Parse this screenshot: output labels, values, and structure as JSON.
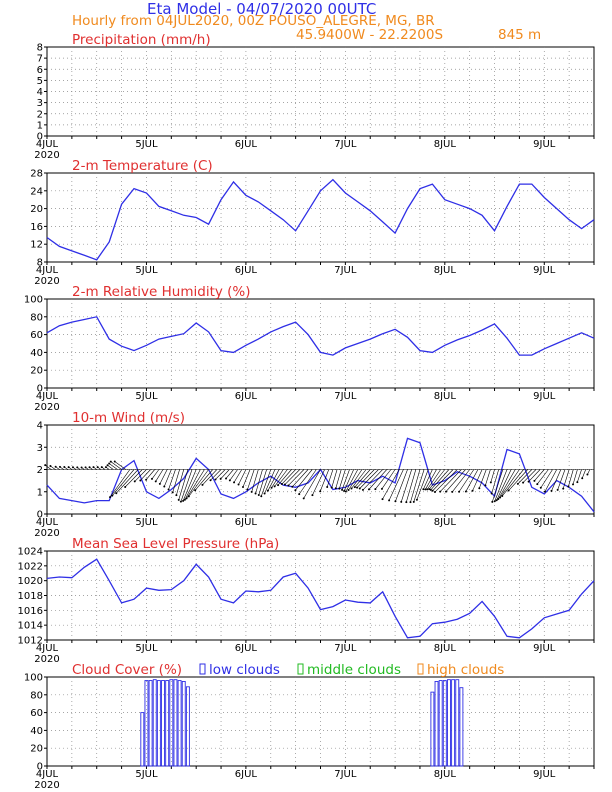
{
  "header": {
    "title": "Eta Model - 04/07/2020 00UTC",
    "subtitle": "Hourly from 04JUL2020, 00Z  POUSO_ALEGRE, MG, BR",
    "coordinates": "45.9400W - 22.2200S",
    "altitude": "845  m"
  },
  "x_axis": {
    "ticks": [
      "4JUL",
      "5JUL",
      "6JUL",
      "7JUL",
      "8JUL",
      "9JUL"
    ],
    "tick_hours": [
      0,
      24,
      48,
      72,
      96,
      120
    ],
    "year_label": "2020",
    "range_hours": [
      0,
      132
    ]
  },
  "colors": {
    "line": "#2f2fe6",
    "panel_title": "#e03030",
    "header": "#2f2fe6",
    "subheader": "#f08a1e",
    "low_clouds": "#2f2fe6",
    "middle_clouds": "#22bb22",
    "high_clouds": "#f08a1e"
  },
  "chart_data": [
    {
      "id": "precip",
      "type": "bar",
      "title": "Precipitation (mm/h)",
      "ylim": [
        0,
        8
      ],
      "yticks": [
        0,
        1,
        2,
        3,
        4,
        5,
        6,
        7,
        8
      ],
      "x": [],
      "values": []
    },
    {
      "id": "temp",
      "type": "line",
      "title": "2-m Temperature (C)",
      "ylim": [
        8,
        28
      ],
      "yticks": [
        8,
        12,
        16,
        20,
        24,
        28
      ],
      "x": [
        0,
        3,
        6,
        9,
        12,
        15,
        18,
        21,
        24,
        27,
        30,
        33,
        36,
        39,
        42,
        45,
        48,
        51,
        54,
        57,
        60,
        63,
        66,
        69,
        72,
        75,
        78,
        81,
        84,
        87,
        90,
        93,
        96,
        99,
        102,
        105,
        108,
        111,
        114,
        117,
        120,
        123,
        126,
        129,
        132
      ],
      "values": [
        13.5,
        11.5,
        10.5,
        9.5,
        8.5,
        12.5,
        21,
        24.5,
        23.5,
        20.5,
        19.5,
        18.5,
        18,
        16.5,
        22,
        26,
        23,
        21.5,
        19.5,
        17.5,
        15,
        19.5,
        24,
        26.5,
        23.5,
        21.5,
        19.5,
        17,
        14.5,
        20,
        24.5,
        25.5,
        22,
        21,
        20,
        18.5,
        15,
        20.5,
        25.5,
        25.5,
        22.5,
        20,
        17.5,
        15.5,
        17.5
      ]
    },
    {
      "id": "rh",
      "type": "line",
      "title": "2-m Relative Humidity (%)",
      "ylim": [
        0,
        100
      ],
      "yticks": [
        0,
        20,
        40,
        60,
        80,
        100
      ],
      "x": [
        0,
        3,
        6,
        9,
        12,
        15,
        18,
        21,
        24,
        27,
        30,
        33,
        36,
        39,
        42,
        45,
        48,
        51,
        54,
        57,
        60,
        63,
        66,
        69,
        72,
        75,
        78,
        81,
        84,
        87,
        90,
        93,
        96,
        99,
        102,
        105,
        108,
        111,
        114,
        117,
        120,
        123,
        126,
        129,
        132
      ],
      "values": [
        62,
        70,
        74,
        77,
        80,
        55,
        47,
        42,
        48,
        55,
        58,
        61,
        73,
        63,
        42,
        40,
        48,
        55,
        63,
        69,
        74,
        60,
        40,
        37,
        45,
        50,
        55,
        61,
        66,
        57,
        42,
        40,
        48,
        54,
        59,
        65,
        72,
        56,
        37,
        37,
        44,
        50,
        56,
        62,
        56
      ]
    },
    {
      "id": "wind",
      "type": "line",
      "title": "10-m Wind (m/s)",
      "ylim": [
        0,
        4
      ],
      "yticks": [
        0,
        1,
        2,
        3,
        4
      ],
      "x": [
        0,
        3,
        6,
        9,
        12,
        15,
        18,
        21,
        24,
        27,
        30,
        33,
        36,
        39,
        42,
        45,
        48,
        51,
        54,
        57,
        60,
        63,
        66,
        69,
        72,
        75,
        78,
        81,
        84,
        87,
        90,
        93,
        96,
        99,
        102,
        105,
        108,
        111,
        114,
        117,
        120,
        123,
        126,
        129,
        132
      ],
      "values": [
        1.3,
        0.7,
        0.6,
        0.5,
        0.6,
        0.6,
        2.0,
        2.4,
        1.0,
        0.7,
        1.1,
        1.6,
        2.5,
        2.0,
        0.9,
        0.7,
        1.0,
        1.4,
        1.7,
        1.3,
        1.2,
        1.4,
        2.0,
        1.1,
        1.2,
        1.5,
        1.4,
        1.7,
        1.4,
        3.4,
        3.2,
        1.3,
        1.5,
        1.9,
        1.7,
        1.4,
        0.8,
        2.9,
        2.7,
        1.2,
        0.9,
        1.5,
        1.2,
        0.8,
        0.1
      ],
      "barbs_baseline": 2
    },
    {
      "id": "mslp",
      "type": "line",
      "title": "Mean Sea Level Pressure (hPa)",
      "ylim": [
        1012,
        1024
      ],
      "yticks": [
        1012,
        1014,
        1016,
        1018,
        1020,
        1022,
        1024
      ],
      "x": [
        0,
        3,
        6,
        9,
        12,
        15,
        18,
        21,
        24,
        27,
        30,
        33,
        36,
        39,
        42,
        45,
        48,
        51,
        54,
        57,
        60,
        63,
        66,
        69,
        72,
        75,
        78,
        81,
        84,
        87,
        90,
        93,
        96,
        99,
        102,
        105,
        108,
        111,
        114,
        117,
        120,
        123,
        126,
        129,
        132
      ],
      "values": [
        1020.3,
        1020.5,
        1020.4,
        1021.8,
        1022.9,
        1020,
        1017,
        1017.5,
        1019,
        1018.7,
        1018.8,
        1020,
        1022.2,
        1020.5,
        1017.5,
        1017,
        1018.6,
        1018.5,
        1018.7,
        1020.5,
        1021,
        1019,
        1016.1,
        1016.5,
        1017.4,
        1017.1,
        1017,
        1018.5,
        1015.2,
        1012.3,
        1012.5,
        1014.2,
        1014.4,
        1014.8,
        1015.6,
        1017.2,
        1015.2,
        1012.5,
        1012.3,
        1013.5,
        1015,
        1015.5,
        1016,
        1018.2,
        1020
      ]
    },
    {
      "id": "cloud",
      "type": "bar",
      "title": "Cloud Cover (%)",
      "ylim": [
        0,
        100
      ],
      "yticks": [
        0,
        20,
        40,
        60,
        80,
        100
      ],
      "legend": [
        "low clouds",
        "middle clouds",
        "high clouds"
      ],
      "series": [
        {
          "name": "low clouds",
          "x": [
            23,
            24,
            25,
            26,
            27,
            28,
            29,
            30,
            31,
            32,
            33,
            34,
            93,
            94,
            95,
            96,
            97,
            98,
            99,
            100
          ],
          "values": [
            60,
            96,
            96,
            97,
            96,
            96,
            96,
            97,
            97,
            96,
            95,
            89,
            83,
            95,
            96,
            96,
            97,
            97,
            97,
            88
          ]
        },
        {
          "name": "middle clouds",
          "x": [],
          "values": []
        },
        {
          "name": "high clouds",
          "x": [],
          "values": []
        }
      ]
    }
  ]
}
